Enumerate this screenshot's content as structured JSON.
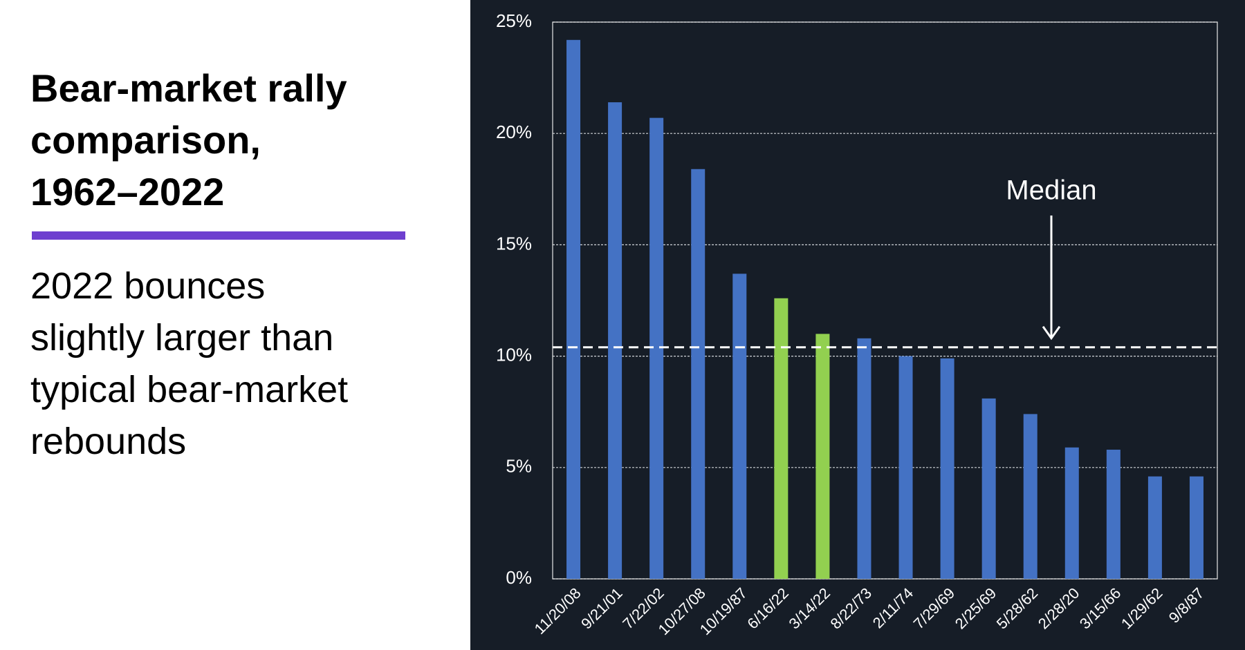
{
  "chart_data": {
    "type": "bar",
    "title": [
      "Bear-market rally",
      "comparison,",
      "1962–2022"
    ],
    "subtitle": [
      "2022 bounces",
      "slightly larger than",
      "typical bear-market",
      "rebounds"
    ],
    "categories": [
      "11/20/08",
      "9/21/01",
      "7/22/02",
      "10/27/08",
      "10/19/87",
      "6/16/22",
      "3/14/22",
      "8/22/73",
      "2/11/74",
      "7/29/69",
      "2/25/69",
      "5/28/62",
      "2/28/20",
      "3/15/66",
      "1/29/62",
      "9/8/87"
    ],
    "values": [
      24.2,
      21.4,
      20.7,
      18.4,
      13.7,
      12.6,
      11.0,
      10.8,
      10.0,
      9.9,
      8.1,
      7.4,
      5.9,
      5.8,
      4.6,
      4.6
    ],
    "colors": [
      "#4472c4",
      "#4472c4",
      "#4472c4",
      "#4472c4",
      "#4472c4",
      "#92d050",
      "#92d050",
      "#4472c4",
      "#4472c4",
      "#4472c4",
      "#4472c4",
      "#4472c4",
      "#4472c4",
      "#4472c4",
      "#4472c4",
      "#4472c4"
    ],
    "ylim": [
      0,
      25
    ],
    "yticks": [
      {
        "value": 0,
        "label": "0%"
      },
      {
        "value": 5,
        "label": "5%"
      },
      {
        "value": 10,
        "label": "10%"
      },
      {
        "value": 15,
        "label": "15%"
      },
      {
        "value": 20,
        "label": "20%"
      },
      {
        "value": 25,
        "label": "25%"
      }
    ],
    "grid": true,
    "median": {
      "label": "Median",
      "value": 10.4
    }
  }
}
